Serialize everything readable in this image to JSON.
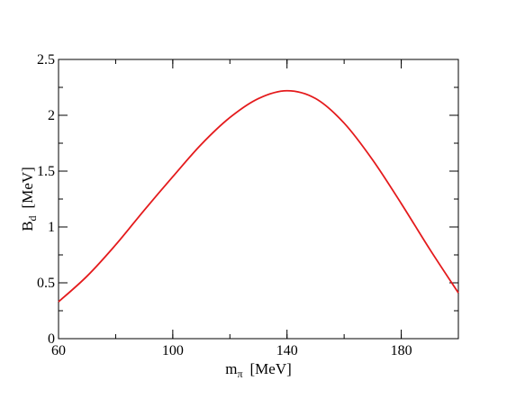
{
  "chart_data": {
    "type": "line",
    "title": "",
    "xlabel": {
      "main": "m",
      "sub": "π",
      "unit": "[MeV]"
    },
    "ylabel": {
      "main": "B",
      "sub": "d",
      "unit": "[MeV]"
    },
    "xlim": [
      60,
      200
    ],
    "ylim": [
      0,
      2.5
    ],
    "x_ticks": [
      60,
      100,
      140,
      180
    ],
    "x_tick_labels": [
      "60",
      "100",
      "140",
      "180"
    ],
    "y_ticks": [
      0,
      0.5,
      1,
      1.5,
      2,
      2.5
    ],
    "y_tick_labels": [
      "0",
      "0.5",
      "1",
      "1.5",
      "2",
      "2.5"
    ],
    "x_minor_step": 20,
    "y_minor_step": 0.25,
    "grid": false,
    "series": [
      {
        "color": "#e41a1c",
        "x": [
          60,
          70,
          80,
          90,
          100,
          110,
          120,
          130,
          140,
          150,
          160,
          170,
          180,
          190,
          200
        ],
        "y": [
          0.33,
          0.56,
          0.84,
          1.15,
          1.45,
          1.74,
          1.98,
          2.15,
          2.22,
          2.15,
          1.93,
          1.6,
          1.21,
          0.8,
          0.41
        ]
      }
    ]
  }
}
